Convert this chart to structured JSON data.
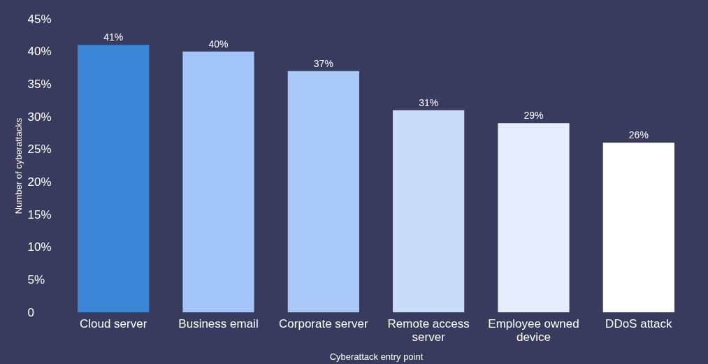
{
  "chart_data": {
    "type": "bar",
    "xlabel": "Cyberattack entry point",
    "ylabel": "Number of cyberattacks",
    "categories": [
      "Cloud server",
      "Business email",
      "Corporate server",
      "Remote access server",
      "Employee owned device",
      "DDoS attack"
    ],
    "values": [
      41,
      40,
      37,
      31,
      29,
      26
    ],
    "colors": [
      "#3b86d6",
      "#a2c4f8",
      "#aac9f9",
      "#c9dcf9",
      "#e4eefd",
      "#ffffff"
    ],
    "value_labels": [
      "41%",
      "40%",
      "37%",
      "31%",
      "29%",
      "26%"
    ],
    "ylim": [
      0,
      45
    ],
    "yticks": [
      0,
      {
        "value": 5,
        "label": "5%"
      },
      {
        "value": 10,
        "label": "10%"
      },
      {
        "value": 15,
        "label": "15%"
      },
      {
        "value": 20,
        "label": "20%"
      },
      {
        "value": 25,
        "label": "25%"
      },
      {
        "value": 30,
        "label": "30%"
      },
      {
        "value": 35,
        "label": "35%"
      },
      {
        "value": 40,
        "label": "40%"
      },
      {
        "value": 45,
        "label": "45%"
      }
    ],
    "grid": false
  }
}
